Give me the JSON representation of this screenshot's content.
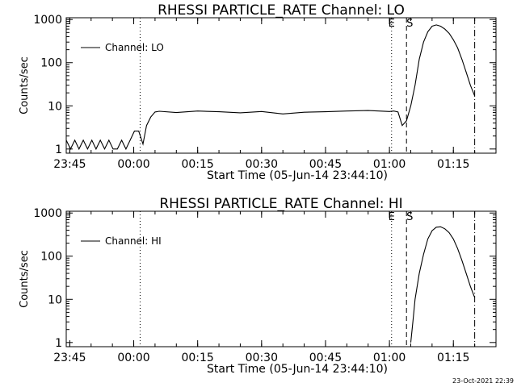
{
  "timestamp": "23-Oct-2021 22:39",
  "chart_data": [
    {
      "type": "line",
      "title": "RHESSI PARTICLE_RATE Channel: LO",
      "xlabel": "Start Time (05-Jun-14 23:44:10)",
      "ylabel": "Counts/sec",
      "yscale": "log",
      "ylim": [
        0.8,
        1100
      ],
      "xlim": [
        "23:44:10",
        "01:25:00"
      ],
      "x_ticks": [
        "23:45",
        "00:00",
        "00:15",
        "00:30",
        "00:45",
        "01:00",
        "01:15"
      ],
      "y_ticks": [
        "1",
        "10",
        "100",
        "1000"
      ],
      "grid": false,
      "legend": "top-left",
      "series": [
        {
          "name": "Channel: LO",
          "x": [
            "23:44:10",
            "23:45:10",
            "23:46:10",
            "23:47:10",
            "23:48:10",
            "23:49:10",
            "23:50:10",
            "23:51:10",
            "23:52:10",
            "23:53:10",
            "23:54:10",
            "23:55:10",
            "23:56:10",
            "23:57:10",
            "23:58:10",
            "23:59:10",
            "00:00:10",
            "00:01:10",
            "00:02:10",
            "00:03:00",
            "00:04:00",
            "00:05:00",
            "00:06:00",
            "00:10:00",
            "00:15:00",
            "00:20:00",
            "00:25:00",
            "00:30:00",
            "00:35:00",
            "00:40:00",
            "00:45:00",
            "00:50:00",
            "00:55:00",
            "01:00:00",
            "01:01:00",
            "01:02:00",
            "01:03:00",
            "01:04:00",
            "01:05:00",
            "01:06:00",
            "01:07:00",
            "01:08:00",
            "01:09:00",
            "01:10:00",
            "01:11:00",
            "01:12:00",
            "01:13:00",
            "01:14:00",
            "01:15:00",
            "01:16:00",
            "01:17:00",
            "01:18:00",
            "01:19:00",
            "01:20:00"
          ],
          "values": [
            1.6,
            1,
            1.6,
            1,
            1.6,
            1,
            1.6,
            1,
            1.6,
            1,
            1.6,
            1,
            1,
            1.6,
            1,
            1.6,
            2.6,
            2.6,
            1.3,
            3.5,
            5.5,
            7.2,
            7.5,
            7.0,
            7.6,
            7.3,
            6.9,
            7.4,
            6.5,
            7.1,
            7.3,
            7.6,
            7.8,
            7.4,
            7.6,
            7.2,
            3.5,
            4.5,
            10,
            30,
            120,
            300,
            520,
            700,
            750,
            700,
            600,
            480,
            340,
            220,
            120,
            60,
            30,
            17
          ]
        }
      ],
      "annotations": [
        {
          "label": "E",
          "x": "01:00:30",
          "style": "dotted"
        },
        {
          "label": "S",
          "x": "01:04:00",
          "style": "dashed"
        },
        {
          "x": "00:01:30",
          "style": "dotted"
        },
        {
          "x": "01:20:00",
          "style": "dash-dot"
        }
      ]
    },
    {
      "type": "line",
      "title": "RHESSI PARTICLE_RATE Channel: HI",
      "xlabel": "Start Time (05-Jun-14 23:44:10)",
      "ylabel": "Counts/sec",
      "yscale": "log",
      "ylim": [
        0.8,
        1100
      ],
      "xlim": [
        "23:44:10",
        "01:25:00"
      ],
      "x_ticks": [
        "23:45",
        "00:00",
        "00:15",
        "00:30",
        "00:45",
        "01:00",
        "01:15"
      ],
      "y_ticks": [
        "1",
        "10",
        "100",
        "1000"
      ],
      "grid": false,
      "legend": "top-left",
      "series": [
        {
          "name": "Channel: HI",
          "x": [
            "01:05:00",
            "01:05:30",
            "01:06:00",
            "01:07:00",
            "01:08:00",
            "01:09:00",
            "01:10:00",
            "01:11:00",
            "01:12:00",
            "01:13:00",
            "01:14:00",
            "01:15:00",
            "01:16:00",
            "01:17:00",
            "01:18:00",
            "01:19:00",
            "01:20:00"
          ],
          "values": [
            1,
            3,
            10,
            40,
            110,
            250,
            390,
            470,
            480,
            430,
            350,
            250,
            150,
            80,
            40,
            20,
            11
          ]
        }
      ],
      "annotations": [
        {
          "label": "E",
          "x": "01:00:30",
          "style": "dotted"
        },
        {
          "label": "S",
          "x": "01:04:00",
          "style": "dashed"
        },
        {
          "x": "00:01:30",
          "style": "dotted"
        },
        {
          "x": "01:20:00",
          "style": "dash-dot"
        }
      ]
    }
  ]
}
